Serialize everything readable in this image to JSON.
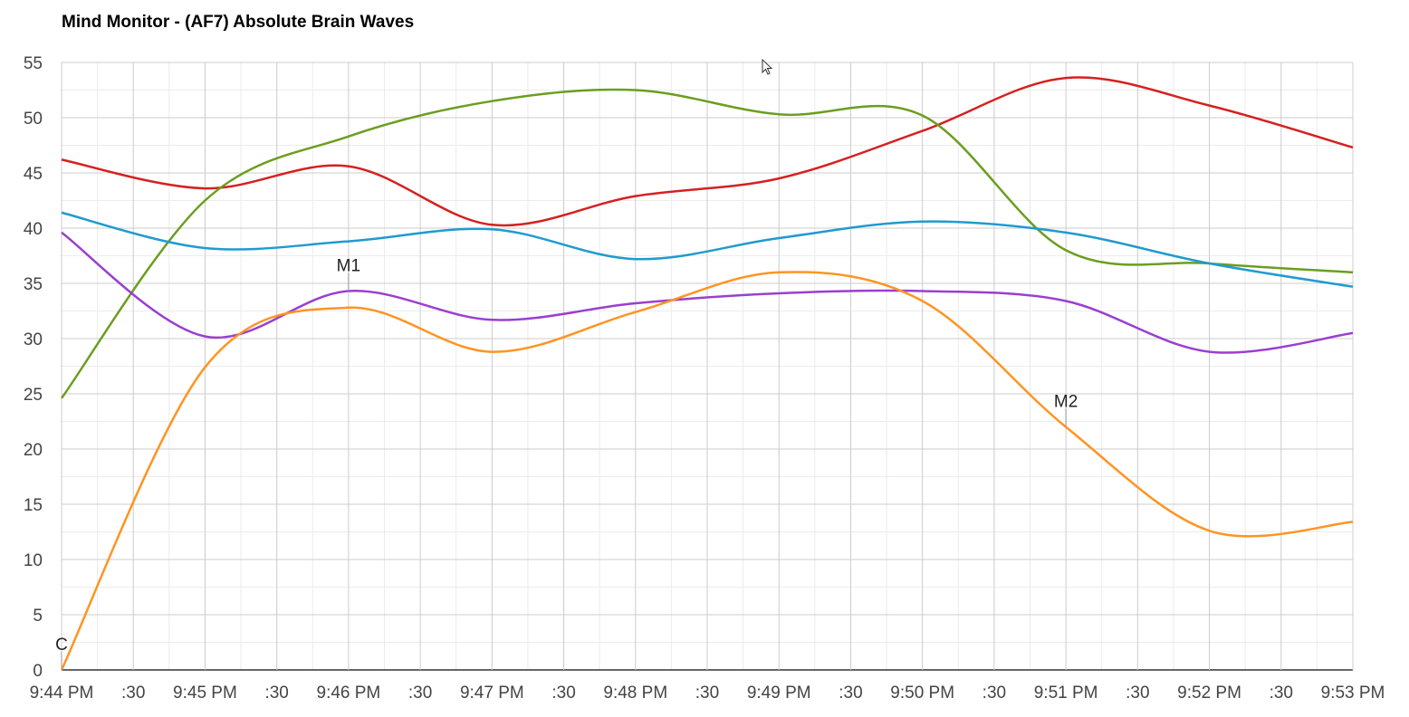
{
  "title": "Mind Monitor - (AF7) Absolute Brain Waves",
  "chart_data": {
    "type": "line",
    "title": "Mind Monitor - (AF7) Absolute Brain Waves",
    "xlabel": "",
    "ylabel": "",
    "ylim": [
      0,
      55
    ],
    "xlim": [
      0,
      9
    ],
    "y_ticks": [
      0,
      5,
      10,
      15,
      20,
      25,
      30,
      35,
      40,
      45,
      50,
      55
    ],
    "x_ticks": [
      {
        "x": 0,
        "label": "9:44 PM"
      },
      {
        "x": 0.5,
        "label": ":30"
      },
      {
        "x": 1,
        "label": "9:45 PM"
      },
      {
        "x": 1.5,
        "label": ":30"
      },
      {
        "x": 2,
        "label": "9:46 PM"
      },
      {
        "x": 2.5,
        "label": ":30"
      },
      {
        "x": 3,
        "label": "9:47 PM"
      },
      {
        "x": 3.5,
        "label": ":30"
      },
      {
        "x": 4,
        "label": "9:48 PM"
      },
      {
        "x": 4.5,
        "label": ":30"
      },
      {
        "x": 5,
        "label": "9:49 PM"
      },
      {
        "x": 5.5,
        "label": ":30"
      },
      {
        "x": 6,
        "label": "9:50 PM"
      },
      {
        "x": 6.5,
        "label": ":30"
      },
      {
        "x": 7,
        "label": "9:51 PM"
      },
      {
        "x": 7.5,
        "label": ":30"
      },
      {
        "x": 8,
        "label": "9:52 PM"
      },
      {
        "x": 8.5,
        "label": ":30"
      },
      {
        "x": 9,
        "label": "9:53 PM"
      }
    ],
    "grid": true,
    "x": [
      0,
      1,
      2,
      3,
      4,
      5,
      6,
      7,
      8,
      9
    ],
    "series": [
      {
        "color": "#d62020",
        "values": [
          46.2,
          43.6,
          45.6,
          40.3,
          42.9,
          44.5,
          48.8,
          53.6,
          51.1,
          47.3
        ]
      },
      {
        "color": "#6b9e1f",
        "values": [
          24.6,
          42.5,
          48.3,
          51.5,
          52.5,
          50.3,
          50.2,
          38.0,
          36.8,
          36.0
        ]
      },
      {
        "color": "#1f9bcf",
        "values": [
          41.4,
          38.2,
          38.8,
          39.9,
          37.2,
          39.1,
          40.6,
          39.6,
          36.8,
          34.7
        ]
      },
      {
        "color": "#9a3fd0",
        "values": [
          39.6,
          30.2,
          34.3,
          31.7,
          33.2,
          34.1,
          34.3,
          33.4,
          28.8,
          30.5
        ]
      },
      {
        "color": "#ff9422",
        "values": [
          0.0,
          27.4,
          32.8,
          28.8,
          32.4,
          36.0,
          33.4,
          22.0,
          12.6,
          13.4
        ]
      }
    ],
    "annotations": [
      {
        "label": "C",
        "x": 0,
        "y": 0
      },
      {
        "label": "M1",
        "x": 2,
        "y": 34.3
      },
      {
        "label": "M2",
        "x": 7,
        "y": 22.0
      }
    ]
  }
}
